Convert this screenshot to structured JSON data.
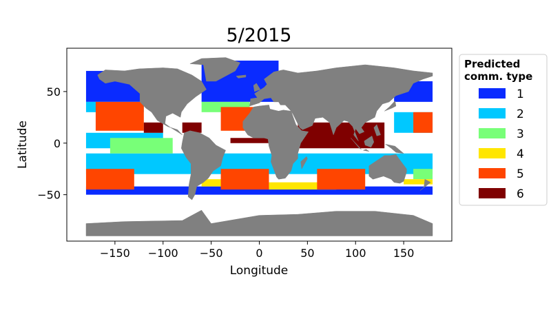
{
  "chart_data": {
    "type": "scatter",
    "title": "5/2015",
    "xlabel": "Longitude",
    "ylabel": "Latitude",
    "xlim": [
      -200,
      200
    ],
    "ylim": [
      -95,
      92
    ],
    "xticks": [
      -150,
      -100,
      -50,
      0,
      50,
      100,
      150
    ],
    "xtick_labels": [
      "−150",
      "−100",
      "−50",
      "0",
      "50",
      "100",
      "150"
    ],
    "yticks": [
      -50,
      0,
      50
    ],
    "ytick_labels": [
      "−50",
      "0",
      "50"
    ],
    "grid": false,
    "land_color": "#808080",
    "legend": {
      "title_lines": [
        "Predicted",
        "comm. type"
      ],
      "placement": "outside-right",
      "entries": [
        {
          "label": "1",
          "color": "#0a2bff"
        },
        {
          "label": "2",
          "color": "#00c8ff"
        },
        {
          "label": "3",
          "color": "#78ff78"
        },
        {
          "label": "4",
          "color": "#ffe600"
        },
        {
          "label": "5",
          "color": "#ff4500"
        },
        {
          "label": "6",
          "color": "#7f0000"
        }
      ]
    },
    "regions": [
      {
        "type": 1,
        "lon": [
          -180,
          -80
        ],
        "lat": [
          40,
          70
        ]
      },
      {
        "type": 1,
        "lon": [
          -60,
          20
        ],
        "lat": [
          40,
          80
        ]
      },
      {
        "type": 1,
        "lon": [
          140,
          180
        ],
        "lat": [
          40,
          60
        ]
      },
      {
        "type": 1,
        "lon": [
          -180,
          180
        ],
        "lat": [
          -50,
          -42
        ]
      },
      {
        "type": 2,
        "lon": [
          -180,
          -120
        ],
        "lat": [
          30,
          40
        ]
      },
      {
        "type": 2,
        "lon": [
          -180,
          180
        ],
        "lat": [
          -30,
          -10
        ]
      },
      {
        "type": 2,
        "lon": [
          140,
          180
        ],
        "lat": [
          10,
          30
        ]
      },
      {
        "type": 2,
        "lon": [
          -180,
          -100
        ],
        "lat": [
          -5,
          10
        ]
      },
      {
        "type": 3,
        "lon": [
          -155,
          -90
        ],
        "lat": [
          -10,
          5
        ]
      },
      {
        "type": 3,
        "lon": [
          -60,
          -10
        ],
        "lat": [
          30,
          40
        ]
      },
      {
        "type": 3,
        "lon": [
          160,
          180
        ],
        "lat": [
          -35,
          -25
        ]
      },
      {
        "type": 4,
        "lon": [
          -60,
          -20
        ],
        "lat": [
          -42,
          -35
        ]
      },
      {
        "type": 4,
        "lon": [
          10,
          80
        ],
        "lat": [
          -45,
          -38
        ]
      },
      {
        "type": 4,
        "lon": [
          150,
          180
        ],
        "lat": [
          -40,
          -35
        ]
      },
      {
        "type": 5,
        "lon": [
          -180,
          -130
        ],
        "lat": [
          -45,
          -25
        ]
      },
      {
        "type": 5,
        "lon": [
          -170,
          -120
        ],
        "lat": [
          12,
          40
        ]
      },
      {
        "type": 5,
        "lon": [
          -40,
          10
        ],
        "lat": [
          -45,
          -25
        ]
      },
      {
        "type": 5,
        "lon": [
          60,
          110
        ],
        "lat": [
          -45,
          -25
        ]
      },
      {
        "type": 5,
        "lon": [
          -40,
          0
        ],
        "lat": [
          12,
          35
        ]
      },
      {
        "type": 5,
        "lon": [
          160,
          180
        ],
        "lat": [
          10,
          30
        ]
      },
      {
        "type": 6,
        "lon": [
          40,
          130
        ],
        "lat": [
          -5,
          20
        ]
      },
      {
        "type": 6,
        "lon": [
          -30,
          10
        ],
        "lat": [
          0,
          5
        ]
      },
      {
        "type": 6,
        "lon": [
          -120,
          -100
        ],
        "lat": [
          10,
          20
        ]
      },
      {
        "type": 6,
        "lon": [
          -80,
          -60
        ],
        "lat": [
          10,
          20
        ]
      }
    ]
  }
}
